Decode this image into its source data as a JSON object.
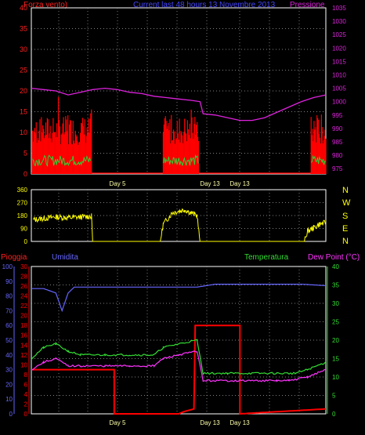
{
  "header": {
    "left": "Forza vento)",
    "center": "Current last 48 hours 13 Novembre 2013",
    "right": "Pressione"
  },
  "colors": {
    "background": "#000000",
    "wind": "#ff0000",
    "wind_gust": "#33cc33",
    "pressure": "#dd22dd",
    "direction": "#ffff00",
    "rain": "#ff0000",
    "humidity": "#6666ff",
    "temperature": "#33dd33",
    "dew_point": "#ff33ff",
    "grid": "#aaaaaa",
    "day_label": "#ffffaa"
  },
  "day_labels": [
    "Day 5",
    "Day 13",
    "Day 13"
  ],
  "direction_labels": [
    "N",
    "W",
    "S",
    "E",
    "N"
  ],
  "chart_data": [
    {
      "type": "line",
      "name": "wind_pressure",
      "title": "Current last 48 hours 13 Novembre 2013",
      "ylabel_left": "Forza vento)",
      "ylabel_right": "Pressione",
      "y_left_ticks": [
        0,
        5,
        10,
        15,
        20,
        25,
        30,
        35,
        40
      ],
      "y_right_ticks": [
        975,
        980,
        985,
        990,
        995,
        1000,
        1005,
        1010,
        1015,
        1020,
        1025,
        1030,
        1035
      ],
      "ylim_left": [
        0,
        40
      ],
      "ylim_right": [
        973,
        1035
      ],
      "x_range": [
        0,
        48
      ],
      "grid": true,
      "series": [
        {
          "axis": "right",
          "points": [
            [
              0,
              1005
            ],
            [
              2,
              1004.5
            ],
            [
              4,
              1004
            ],
            [
              6,
              1002.5
            ],
            [
              8,
              1003.5
            ],
            [
              10,
              1004.5
            ],
            [
              12,
              1005
            ],
            [
              14,
              1004.5
            ],
            [
              16,
              1003.5
            ],
            [
              18,
              1003
            ],
            [
              20,
              1002
            ],
            [
              22,
              1001.5
            ],
            [
              24,
              1001
            ],
            [
              26,
              1000.5
            ],
            [
              27.5,
              1000
            ],
            [
              28,
              995.5
            ],
            [
              30,
              995
            ],
            [
              32,
              994
            ],
            [
              34,
              993
            ],
            [
              36,
              993
            ],
            [
              38,
              994
            ],
            [
              40,
              996
            ],
            [
              42,
              998
            ],
            [
              44,
              1000
            ],
            [
              46,
              1001.5
            ],
            [
              48,
              1002.5
            ]
          ]
        },
        {
          "axis": "left",
          "type": "area",
          "segments": [
            [
              0.2,
              9.8
            ],
            [
              21.5,
              27.3
            ],
            [
              45.6,
              48
            ]
          ],
          "level_low": 7,
          "level_high": 14
        },
        {
          "axis": "left",
          "segments": [
            [
              0.2,
              9.8
            ],
            [
              21.5,
              27.3
            ],
            [
              45.6,
              48
            ]
          ],
          "level": 2
        }
      ]
    },
    {
      "type": "scatter",
      "name": "wind_direction",
      "y_ticks": [
        0,
        90,
        180,
        270,
        360
      ],
      "ylim": [
        0,
        360
      ],
      "x_range": [
        0,
        48
      ],
      "grid": true,
      "series": [
        {
          "points": [
            [
              0.3,
              150
            ],
            [
              2,
              160
            ],
            [
              4,
              170
            ],
            [
              6,
              165
            ],
            [
              8,
              170
            ],
            [
              9.8,
              175
            ],
            [
              10,
              0
            ],
            [
              21,
              0
            ],
            [
              21.5,
              120
            ],
            [
              23,
              200
            ],
            [
              25,
              220
            ],
            [
              27,
              180
            ],
            [
              27.5,
              0
            ],
            [
              44.5,
              0
            ],
            [
              45,
              70
            ],
            [
              46,
              95
            ],
            [
              47,
              120
            ],
            [
              48,
              130
            ]
          ]
        }
      ]
    },
    {
      "type": "line",
      "name": "rain_humidity_temp_dew",
      "legend": [
        "Pioggia",
        "Umidita",
        "Temperatura",
        "Dew Point (°C)"
      ],
      "y_rain_ticks": [
        0,
        2,
        4,
        6,
        8,
        10,
        12,
        14,
        16,
        18,
        20,
        22,
        24,
        26,
        28,
        30
      ],
      "y_humidity_ticks": [
        0,
        10,
        20,
        30,
        40,
        50,
        60,
        70,
        80,
        90,
        100
      ],
      "y_temp_ticks": [
        0,
        5,
        10,
        15,
        20,
        25,
        30,
        35,
        40
      ],
      "ylim_rain": [
        0,
        30
      ],
      "ylim_humidity": [
        0,
        100
      ],
      "ylim_temp": [
        0,
        40
      ],
      "x_range": [
        0,
        48
      ],
      "grid": true,
      "series": [
        {
          "name": "Pioggia",
          "axis": "rain",
          "points": [
            [
              0,
              9
            ],
            [
              13.5,
              9
            ],
            [
              13.5,
              0
            ],
            [
              24,
              0
            ],
            [
              25,
              0.5
            ],
            [
              26.5,
              1
            ],
            [
              26.7,
              18
            ],
            [
              34,
              18
            ],
            [
              34,
              0
            ],
            [
              48,
              1
            ]
          ]
        },
        {
          "name": "Umidita",
          "axis": "humidity",
          "points": [
            [
              0,
              85
            ],
            [
              2,
              85
            ],
            [
              4,
              82
            ],
            [
              5,
              70
            ],
            [
              6,
              82
            ],
            [
              7,
              86
            ],
            [
              10,
              86
            ],
            [
              12,
              86
            ],
            [
              16,
              86
            ],
            [
              20,
              86
            ],
            [
              24,
              86
            ],
            [
              27,
              86
            ],
            [
              30,
              88
            ],
            [
              36,
              88
            ],
            [
              44,
              88
            ],
            [
              48,
              87
            ]
          ]
        },
        {
          "name": "Temperatura",
          "axis": "temp",
          "points": [
            [
              0,
              15
            ],
            [
              2,
              18
            ],
            [
              4,
              19
            ],
            [
              6,
              17
            ],
            [
              8,
              16
            ],
            [
              12,
              16
            ],
            [
              16,
              16
            ],
            [
              20,
              16
            ],
            [
              21.5,
              18
            ],
            [
              24,
              19
            ],
            [
              27,
              20
            ],
            [
              28,
              11
            ],
            [
              32,
              11
            ],
            [
              40,
              11
            ],
            [
              43,
              11
            ],
            [
              45,
              12
            ],
            [
              48,
              14
            ]
          ]
        },
        {
          "name": "Dew Point (°C)",
          "axis": "temp",
          "points": [
            [
              0,
              12
            ],
            [
              2,
              14
            ],
            [
              4,
              15
            ],
            [
              6,
              13
            ],
            [
              8,
              13
            ],
            [
              12,
              13
            ],
            [
              16,
              13
            ],
            [
              20,
              13
            ],
            [
              21.5,
              15
            ],
            [
              24,
              16
            ],
            [
              27,
              17
            ],
            [
              28,
              9
            ],
            [
              32,
              9
            ],
            [
              40,
              9
            ],
            [
              42,
              9
            ],
            [
              45,
              10
            ],
            [
              48,
              12
            ]
          ]
        }
      ]
    }
  ]
}
